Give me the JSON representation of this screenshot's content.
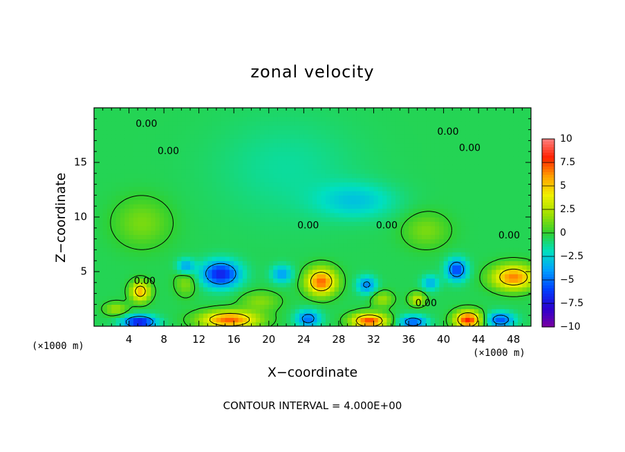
{
  "chart_data": {
    "type": "heatmap",
    "title": "zonal velocity",
    "xlabel": "X−coordinate",
    "ylabel": "Z−coordinate",
    "x_unit_left": "(×1000 m)",
    "x_unit_right": "(×1000 m)",
    "xlim": [
      0,
      50
    ],
    "ylim": [
      0,
      20
    ],
    "x_ticks": [
      4,
      8,
      12,
      16,
      20,
      24,
      28,
      32,
      36,
      40,
      44,
      48
    ],
    "y_ticks": [
      5,
      10,
      15
    ],
    "colorbar": {
      "ticks": [
        10,
        7.5,
        5,
        2.5,
        0,
        -2.5,
        -5,
        -7.5,
        -10
      ],
      "tick_labels": [
        "10",
        "7.5",
        "5",
        "2.5",
        "0",
        "−2.5",
        "−5",
        "−7.5",
        "−10"
      ],
      "range": [
        -10,
        10
      ],
      "colors": [
        "#7a00a0",
        "#2a00d0",
        "#0040ff",
        "#00a0ff",
        "#00e0c0",
        "#30d030",
        "#a0e000",
        "#f0f000",
        "#ffa000",
        "#ff2000",
        "#ff8080"
      ]
    },
    "background_value": -0.5,
    "features": [
      {
        "x": 14.5,
        "z": 4.8,
        "sx": 2.2,
        "sz": 1.2,
        "amp": -6.5
      },
      {
        "x": 5.3,
        "z": 3.2,
        "sx": 1.1,
        "sz": 0.9,
        "amp": 6.0
      },
      {
        "x": 26.0,
        "z": 4.1,
        "sx": 1.7,
        "sz": 1.2,
        "amp": 7.5
      },
      {
        "x": 15.5,
        "z": 0.6,
        "sx": 3.2,
        "sz": 0.8,
        "amp": 7.5
      },
      {
        "x": 31.5,
        "z": 0.5,
        "sx": 2.0,
        "sz": 0.7,
        "amp": 8.0
      },
      {
        "x": 42.8,
        "z": 0.6,
        "sx": 1.5,
        "sz": 0.8,
        "amp": 8.5
      },
      {
        "x": 48.0,
        "z": 4.5,
        "sx": 2.4,
        "sz": 1.1,
        "amp": 7.0
      },
      {
        "x": 41.5,
        "z": 5.2,
        "sx": 1.2,
        "sz": 1.0,
        "amp": -5.5
      },
      {
        "x": 5.2,
        "z": 0.4,
        "sx": 1.9,
        "sz": 0.6,
        "amp": -7.0
      },
      {
        "x": 36.5,
        "z": 0.4,
        "sx": 1.6,
        "sz": 0.6,
        "amp": -5.0
      },
      {
        "x": 46.5,
        "z": 0.6,
        "sx": 1.6,
        "sz": 0.7,
        "amp": -5.0
      },
      {
        "x": 24.5,
        "z": 0.7,
        "sx": 1.4,
        "sz": 0.8,
        "amp": -4.5
      },
      {
        "x": 31.2,
        "z": 3.8,
        "sx": 1.1,
        "sz": 0.8,
        "amp": -4.0
      },
      {
        "x": 21.5,
        "z": 4.8,
        "sx": 1.2,
        "sz": 0.8,
        "amp": -3.5
      },
      {
        "x": 10.5,
        "z": 5.5,
        "sx": 1.0,
        "sz": 0.7,
        "amp": -3.5
      },
      {
        "x": 37.0,
        "z": 2.5,
        "sx": 0.9,
        "sz": 0.6,
        "amp": 3.5
      },
      {
        "x": 2.5,
        "z": 1.6,
        "sx": 1.3,
        "sz": 0.6,
        "amp": 2.5
      },
      {
        "x": 19.0,
        "z": 2.3,
        "sx": 2.2,
        "sz": 0.9,
        "amp": 2.0
      },
      {
        "x": 33.0,
        "z": 2.5,
        "sx": 1.2,
        "sz": 0.7,
        "amp": 2.5
      },
      {
        "x": 38.5,
        "z": 4.0,
        "sx": 1.0,
        "sz": 0.7,
        "amp": -3.0
      },
      {
        "x": 30.0,
        "z": 11.5,
        "sx": 4.5,
        "sz": 1.6,
        "amp": -2.2
      },
      {
        "x": 38.0,
        "z": 8.8,
        "sx": 2.6,
        "sz": 1.6,
        "amp": 1.8
      },
      {
        "x": 5.5,
        "z": 9.5,
        "sx": 3.2,
        "sz": 2.2,
        "amp": 1.8
      },
      {
        "x": 22.0,
        "z": 14.5,
        "sx": 8.0,
        "sz": 4.5,
        "amp": -1.0
      },
      {
        "x": 10.5,
        "z": 4.0,
        "sx": 1.2,
        "sz": 1.2,
        "amp": 2.0
      }
    ],
    "zero_contour_labels": [
      {
        "x": 6.0,
        "z": 18.5,
        "text": "0.00"
      },
      {
        "x": 8.5,
        "z": 16.0,
        "text": "0.00"
      },
      {
        "x": 40.5,
        "z": 17.8,
        "text": "0.00"
      },
      {
        "x": 43.0,
        "z": 16.3,
        "text": "0.00"
      },
      {
        "x": 24.5,
        "z": 9.2,
        "text": "0.00"
      },
      {
        "x": 33.5,
        "z": 9.2,
        "text": "0.00"
      },
      {
        "x": 47.5,
        "z": 8.3,
        "text": "0.00"
      },
      {
        "x": 5.8,
        "z": 4.1,
        "text": "0.00"
      },
      {
        "x": 38.0,
        "z": 2.1,
        "text": "0.00"
      }
    ],
    "contour_interval_note": "CONTOUR INTERVAL = 4.000E+00"
  }
}
